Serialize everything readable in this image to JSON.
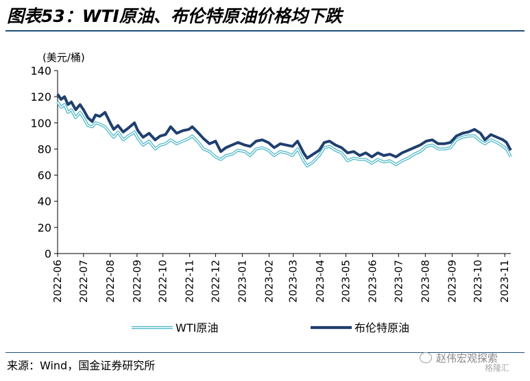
{
  "header": {
    "title": "图表53：WTI原油、布伦特原油价格均下跌"
  },
  "footer": {
    "source": "来源：Wind，国金证券研究所",
    "watermark": "赵伟宏观探索",
    "watermark_sub": "格隆汇"
  },
  "chart_data": {
    "type": "line",
    "ylabel": "(美元/桶)",
    "ylim": [
      0,
      140
    ],
    "yticks": [
      0,
      20,
      40,
      60,
      80,
      100,
      120,
      140
    ],
    "xlim": [
      "2022-06-01",
      "2023-11-08"
    ],
    "xticks": [
      "2022-06",
      "2022-07",
      "2022-08",
      "2022-09",
      "2022-10",
      "2022-11",
      "2022-12",
      "2023-01",
      "2023-02",
      "2023-03",
      "2023-04",
      "2023-05",
      "2023-06",
      "2023-07",
      "2023-08",
      "2023-09",
      "2023-10",
      "2023-11"
    ],
    "legend_position": "bottom",
    "grid": false,
    "colors": {
      "wti": "#4fb8c8",
      "brent": "#1f3f6e",
      "axis": "#000000"
    },
    "series": [
      {
        "name": "WTI原油",
        "x": [
          "2022-06-01",
          "2022-06-05",
          "2022-06-09",
          "2022-06-13",
          "2022-06-17",
          "2022-06-22",
          "2022-06-27",
          "2022-07-01",
          "2022-07-06",
          "2022-07-11",
          "2022-07-15",
          "2022-07-20",
          "2022-07-26",
          "2022-08-01",
          "2022-08-05",
          "2022-08-10",
          "2022-08-16",
          "2022-08-22",
          "2022-08-29",
          "2022-09-02",
          "2022-09-08",
          "2022-09-15",
          "2022-09-22",
          "2022-09-28",
          "2022-10-04",
          "2022-10-10",
          "2022-10-17",
          "2022-10-24",
          "2022-10-31",
          "2022-11-04",
          "2022-11-10",
          "2022-11-17",
          "2022-11-24",
          "2022-12-01",
          "2022-12-07",
          "2022-12-13",
          "2022-12-20",
          "2022-12-27",
          "2023-01-04",
          "2023-01-10",
          "2023-01-17",
          "2023-01-24",
          "2023-01-31",
          "2023-02-07",
          "2023-02-14",
          "2023-02-21",
          "2023-02-28",
          "2023-03-06",
          "2023-03-13",
          "2023-03-17",
          "2023-03-24",
          "2023-03-31",
          "2023-04-06",
          "2023-04-12",
          "2023-04-19",
          "2023-04-26",
          "2023-05-03",
          "2023-05-10",
          "2023-05-17",
          "2023-05-24",
          "2023-05-31",
          "2023-06-07",
          "2023-06-14",
          "2023-06-21",
          "2023-06-28",
          "2023-07-05",
          "2023-07-12",
          "2023-07-19",
          "2023-07-26",
          "2023-08-02",
          "2023-08-09",
          "2023-08-16",
          "2023-08-23",
          "2023-08-30",
          "2023-09-06",
          "2023-09-13",
          "2023-09-20",
          "2023-09-27",
          "2023-10-04",
          "2023-10-09",
          "2023-10-16",
          "2023-10-23",
          "2023-10-30",
          "2023-11-03",
          "2023-11-08"
        ],
        "values": [
          116,
          112,
          114,
          108,
          110,
          104,
          108,
          104,
          98,
          97,
          100,
          99,
          97,
          92,
          89,
          93,
          87,
          90,
          93,
          88,
          83,
          86,
          80,
          83,
          84,
          87,
          84,
          86,
          88,
          90,
          86,
          80,
          78,
          74,
          72,
          75,
          76,
          79,
          78,
          75,
          80,
          81,
          79,
          75,
          78,
          77,
          75,
          80,
          71,
          67,
          70,
          75,
          81,
          82,
          79,
          77,
          71,
          73,
          72,
          72,
          69,
          72,
          70,
          71,
          68,
          71,
          73,
          76,
          78,
          82,
          83,
          80,
          80,
          81,
          87,
          89,
          90,
          90,
          86,
          84,
          87,
          85,
          82,
          80,
          74
        ]
      },
      {
        "name": "布伦特原油",
        "x": [
          "2022-06-01",
          "2022-06-05",
          "2022-06-09",
          "2022-06-13",
          "2022-06-17",
          "2022-06-22",
          "2022-06-27",
          "2022-07-01",
          "2022-07-06",
          "2022-07-11",
          "2022-07-15",
          "2022-07-20",
          "2022-07-26",
          "2022-08-01",
          "2022-08-05",
          "2022-08-10",
          "2022-08-16",
          "2022-08-22",
          "2022-08-29",
          "2022-09-02",
          "2022-09-08",
          "2022-09-15",
          "2022-09-22",
          "2022-09-28",
          "2022-10-04",
          "2022-10-10",
          "2022-10-17",
          "2022-10-24",
          "2022-10-31",
          "2022-11-04",
          "2022-11-10",
          "2022-11-17",
          "2022-11-24",
          "2022-12-01",
          "2022-12-07",
          "2022-12-13",
          "2022-12-20",
          "2022-12-27",
          "2023-01-04",
          "2023-01-10",
          "2023-01-17",
          "2023-01-24",
          "2023-01-31",
          "2023-02-07",
          "2023-02-14",
          "2023-02-21",
          "2023-02-28",
          "2023-03-06",
          "2023-03-13",
          "2023-03-17",
          "2023-03-24",
          "2023-03-31",
          "2023-04-06",
          "2023-04-12",
          "2023-04-19",
          "2023-04-26",
          "2023-05-03",
          "2023-05-10",
          "2023-05-17",
          "2023-05-24",
          "2023-05-31",
          "2023-06-07",
          "2023-06-14",
          "2023-06-21",
          "2023-06-28",
          "2023-07-05",
          "2023-07-12",
          "2023-07-19",
          "2023-07-26",
          "2023-08-02",
          "2023-08-09",
          "2023-08-16",
          "2023-08-23",
          "2023-08-30",
          "2023-09-06",
          "2023-09-13",
          "2023-09-20",
          "2023-09-27",
          "2023-10-04",
          "2023-10-09",
          "2023-10-16",
          "2023-10-23",
          "2023-10-30",
          "2023-11-03",
          "2023-11-08"
        ],
        "values": [
          122,
          118,
          120,
          114,
          116,
          110,
          114,
          110,
          104,
          101,
          106,
          105,
          108,
          100,
          95,
          98,
          93,
          96,
          100,
          94,
          89,
          92,
          87,
          90,
          91,
          97,
          92,
          94,
          95,
          97,
          93,
          88,
          84,
          86,
          78,
          81,
          83,
          85,
          83,
          82,
          86,
          87,
          85,
          81,
          84,
          83,
          82,
          86,
          77,
          73,
          76,
          79,
          85,
          86,
          83,
          81,
          77,
          78,
          75,
          77,
          74,
          77,
          75,
          76,
          74,
          77,
          79,
          81,
          83,
          86,
          87,
          84,
          84,
          85,
          90,
          92,
          93,
          95,
          92,
          87,
          91,
          89,
          87,
          85,
          79
        ]
      }
    ]
  }
}
